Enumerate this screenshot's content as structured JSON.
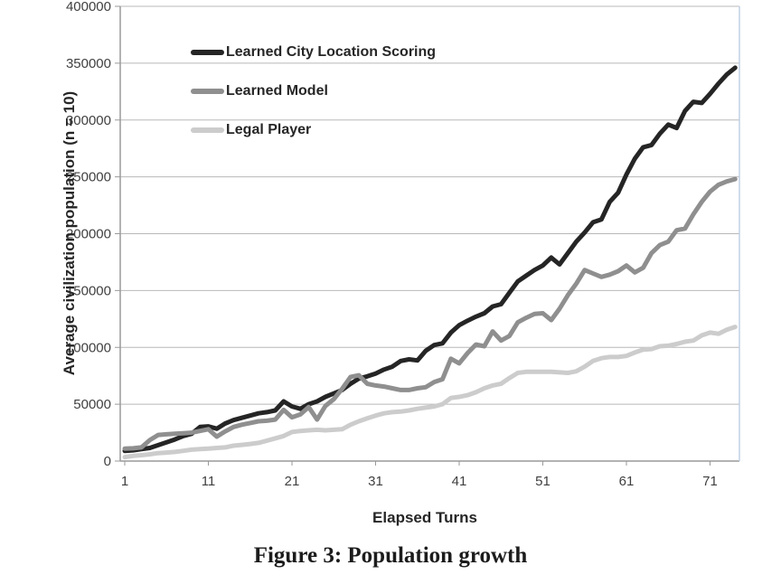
{
  "figure": {
    "caption": "Figure 3: Population growth"
  },
  "chart_data": {
    "type": "line",
    "title": "",
    "xlabel": "Elapsed Turns",
    "ylabel": "Average civilization population (n = 10)",
    "x_tick_values": [
      1,
      11,
      21,
      31,
      41,
      51,
      61,
      71
    ],
    "y_tick_values": [
      0,
      50000,
      100000,
      150000,
      200000,
      250000,
      300000,
      350000,
      400000
    ],
    "xlim": [
      1,
      74
    ],
    "ylim": [
      0,
      400000
    ],
    "grid": true,
    "legend_position": "upper-left-inside",
    "turns_start": 1,
    "series": [
      {
        "name": "Learned City Location Scoring",
        "color": "#252525",
        "values": [
          9000,
          9500,
          10500,
          11500,
          14000,
          16500,
          19000,
          22000,
          24000,
          30000,
          30500,
          28500,
          33000,
          36000,
          38000,
          40000,
          42000,
          43000,
          44500,
          52500,
          48000,
          46000,
          50000,
          52500,
          56500,
          59500,
          62500,
          68000,
          72500,
          74500,
          77000,
          80500,
          83000,
          88000,
          89500,
          88500,
          97000,
          102000,
          103500,
          113000,
          119500,
          123500,
          127000,
          130000,
          136000,
          138000,
          148000,
          158000,
          163000,
          168000,
          172000,
          179000,
          173000,
          183000,
          193000,
          201000,
          210000,
          212500,
          228000,
          236000,
          252000,
          266000,
          276000,
          278000,
          288000,
          296000,
          293000,
          308000,
          316000,
          315000,
          323000,
          332000,
          340000,
          346000
        ]
      },
      {
        "name": "Learned Model",
        "color": "#8f8f8f",
        "values": [
          11000,
          11200,
          12000,
          18500,
          23000,
          23500,
          24000,
          24500,
          25000,
          26500,
          28000,
          21500,
          26000,
          30000,
          32000,
          33500,
          35000,
          35500,
          36500,
          45000,
          38500,
          41000,
          47500,
          36500,
          48500,
          54500,
          63500,
          74000,
          75500,
          68000,
          66500,
          65500,
          64000,
          62500,
          62500,
          64000,
          65000,
          69500,
          72000,
          90000,
          86000,
          95000,
          102500,
          101000,
          114000,
          106000,
          110000,
          122000,
          126000,
          129500,
          130000,
          124000,
          134000,
          146000,
          156000,
          168000,
          165000,
          162000,
          164000,
          167000,
          172000,
          166000,
          170000,
          183000,
          190000,
          193000,
          203000,
          204500,
          217000,
          228000,
          237000,
          243000,
          246000,
          248000
        ]
      },
      {
        "name": "Legal Player",
        "color": "#cccccc",
        "values": [
          3500,
          4500,
          5200,
          6000,
          7000,
          7500,
          8000,
          9000,
          10000,
          10500,
          11000,
          11500,
          12000,
          13500,
          14200,
          15000,
          16000,
          18000,
          20000,
          22000,
          25500,
          26500,
          27000,
          27500,
          27000,
          27500,
          28000,
          32000,
          35000,
          37500,
          40000,
          42000,
          43000,
          43500,
          44500,
          46000,
          47000,
          48000,
          50000,
          55500,
          56500,
          58000,
          60500,
          64000,
          66500,
          68000,
          73000,
          77500,
          78500,
          78500,
          78500,
          78500,
          78000,
          77500,
          79000,
          83000,
          88000,
          90500,
          91500,
          91500,
          92500,
          95500,
          98000,
          98500,
          101000,
          101500,
          103000,
          105000,
          106000,
          110500,
          113000,
          112000,
          115500,
          118000
        ]
      }
    ],
    "colors": {
      "gridline": "#b8b8b8",
      "axis_line": "#9a9a9a",
      "plot_border_right": "#c0d0e6",
      "tick_text": "#3f3f3f",
      "label_text": "#262626"
    }
  }
}
